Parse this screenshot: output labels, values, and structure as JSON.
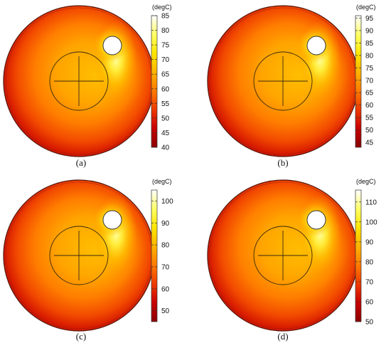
{
  "colormap_stops": [
    "#8b0000",
    "#c80000",
    "#ee3a00",
    "#ff7a00",
    "#ffb300",
    "#ffe600",
    "#ffff66",
    "#ffffff"
  ],
  "panels": [
    {
      "id": "a",
      "caption": "(a)",
      "unit": "(degC)",
      "ticks": [
        85,
        80,
        75,
        70,
        65,
        60,
        55,
        50,
        45,
        40
      ],
      "min": 40,
      "max": 85
    },
    {
      "id": "b",
      "caption": "(b)",
      "unit": "(degC)",
      "ticks": [
        95,
        90,
        85,
        80,
        75,
        70,
        65,
        60,
        55,
        50,
        45
      ],
      "min": 43,
      "max": 96
    },
    {
      "id": "c",
      "caption": "(c)",
      "unit": "(degC)",
      "ticks": [
        100,
        90,
        80,
        70,
        60,
        50
      ],
      "min": 45,
      "max": 105
    },
    {
      "id": "d",
      "caption": "(d)",
      "unit": "(degC)",
      "ticks": [
        110,
        100,
        90,
        80,
        70,
        60,
        50
      ],
      "min": 50,
      "max": 116
    }
  ]
}
